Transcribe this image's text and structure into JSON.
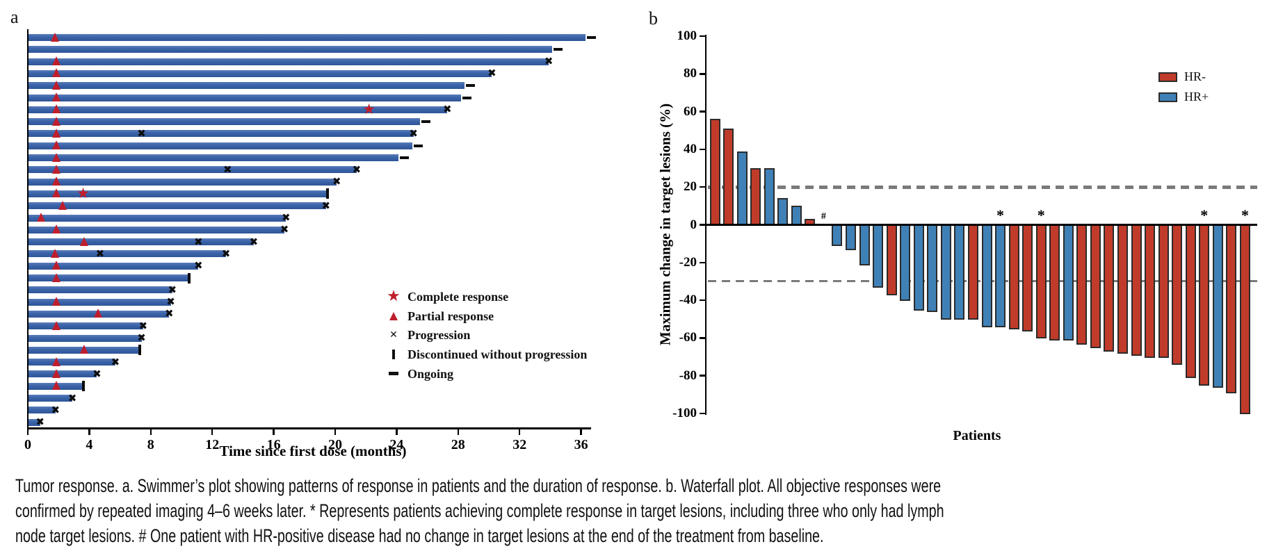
{
  "figure": {
    "caption": {
      "lines": [
        "Tumor response. a. Swimmer’s plot showing patterns of response in patients and the duration of response. b. Waterfall plot. All objective responses were",
        "confirmed by repeated imaging 4–6 weeks later. * Represents patients achieving complete response in target lesions, including three who only had lymph",
        "node target lesions. # One patient with HR-positive disease had no change in target lesions at the end of the treatment from baseline."
      ]
    }
  },
  "chart_data": [
    {
      "type": "bar",
      "subtype": "swimmer",
      "panel_label": "a",
      "xlabel": "Time since first dose (months)",
      "xlim": [
        0,
        36.5
      ],
      "x_ticks": [
        0,
        4,
        8,
        12,
        16,
        20,
        24,
        28,
        32,
        36
      ],
      "grid": false,
      "colors": {
        "bar_blue": "#3a63a8",
        "response_red": "#bf1e2c",
        "marker_black": "#0d0d0d"
      },
      "legend_position": "center-right",
      "legend": [
        {
          "symbol": "star",
          "label": "Complete response"
        },
        {
          "symbol": "triangle",
          "label": "Partial response"
        },
        {
          "symbol": "x",
          "label": "Progression"
        },
        {
          "symbol": "bar",
          "label": "Discontinued without progression"
        },
        {
          "symbol": "dash",
          "label": "Ongoing"
        }
      ],
      "patients": [
        {
          "months": 36.3,
          "end": "ongoing",
          "pr": [
            1.8
          ]
        },
        {
          "months": 34.1,
          "end": "ongoing"
        },
        {
          "months": 33.9,
          "end": "progression",
          "pr": [
            1.9
          ]
        },
        {
          "months": 30.2,
          "end": "progression",
          "pr": [
            1.9
          ]
        },
        {
          "months": 28.4,
          "end": "ongoing",
          "pr": [
            1.9
          ]
        },
        {
          "months": 28.2,
          "end": "ongoing",
          "pr": [
            1.9
          ]
        },
        {
          "months": 27.3,
          "end": "progression",
          "pr": [
            1.9
          ],
          "cr": [
            22.2
          ]
        },
        {
          "months": 25.5,
          "end": "ongoing",
          "pr": [
            1.9
          ]
        },
        {
          "months": 25.1,
          "end": "progression",
          "pr": [
            1.9
          ],
          "x": [
            7.4
          ]
        },
        {
          "months": 25.0,
          "end": "ongoing",
          "pr": [
            1.9
          ]
        },
        {
          "months": 24.1,
          "end": "ongoing",
          "pr": [
            1.9
          ]
        },
        {
          "months": 21.4,
          "end": "progression",
          "pr": [
            1.9
          ],
          "x": [
            13.0
          ]
        },
        {
          "months": 20.1,
          "end": "progression",
          "pr": [
            1.9
          ]
        },
        {
          "months": 19.5,
          "end": "discontinued",
          "pr": [
            1.9
          ],
          "cr": [
            3.6
          ]
        },
        {
          "months": 19.4,
          "end": "progression",
          "pr": [
            2.3
          ]
        },
        {
          "months": 16.8,
          "end": "progression",
          "pr": [
            0.9
          ]
        },
        {
          "months": 16.7,
          "end": "progression",
          "pr": [
            1.9
          ]
        },
        {
          "months": 14.7,
          "end": "progression",
          "pr": [
            3.7
          ],
          "x": [
            11.1
          ]
        },
        {
          "months": 12.9,
          "end": "progression",
          "pr": [
            1.8
          ],
          "x": [
            4.7
          ]
        },
        {
          "months": 11.1,
          "end": "progression",
          "pr": [
            1.9
          ]
        },
        {
          "months": 10.5,
          "end": "discontinued",
          "pr": [
            1.9
          ]
        },
        {
          "months": 9.4,
          "end": "progression"
        },
        {
          "months": 9.3,
          "end": "progression",
          "pr": [
            1.9
          ]
        },
        {
          "months": 9.2,
          "end": "progression",
          "pr": [
            4.6
          ]
        },
        {
          "months": 7.5,
          "end": "progression",
          "pr": [
            1.9
          ]
        },
        {
          "months": 7.4,
          "end": "progression"
        },
        {
          "months": 7.3,
          "end": "discontinued",
          "pr": [
            3.7
          ]
        },
        {
          "months": 5.7,
          "end": "progression",
          "pr": [
            1.9
          ]
        },
        {
          "months": 4.5,
          "end": "progression",
          "pr": [
            1.9
          ]
        },
        {
          "months": 3.6,
          "end": "discontinued",
          "pr": [
            1.9
          ]
        },
        {
          "months": 2.9,
          "end": "progression"
        },
        {
          "months": 1.8,
          "end": "progression"
        },
        {
          "months": 0.8,
          "end": "progression"
        }
      ]
    },
    {
      "type": "bar",
      "subtype": "waterfall",
      "panel_label": "b",
      "ylabel": "Maximum change in target lesions (%)",
      "xlabel": "Patients",
      "ylim": [
        -100,
        100
      ],
      "y_ticks": [
        100,
        80,
        60,
        40,
        20,
        0,
        -20,
        -40,
        -60,
        -80,
        -100
      ],
      "reference_lines": [
        20,
        -30
      ],
      "grid": false,
      "colors": {
        "hr_neg": "#c13b2a",
        "hr_pos": "#3f81b7",
        "bar_border": "#2b2b2b",
        "ref_gray": "#7a7a7a"
      },
      "legend_position": "top-right",
      "legend": [
        {
          "label": "HR-",
          "color": "#c13b2a"
        },
        {
          "label": "HR+",
          "color": "#3f81b7"
        }
      ],
      "bars": [
        {
          "value": 56,
          "group": "HR-"
        },
        {
          "value": 51,
          "group": "HR-"
        },
        {
          "value": 39,
          "group": "HR+"
        },
        {
          "value": 30,
          "group": "HR-"
        },
        {
          "value": 30,
          "group": "HR+"
        },
        {
          "value": 14,
          "group": "HR+"
        },
        {
          "value": 10,
          "group": "HR+"
        },
        {
          "value": 3,
          "group": "HR-"
        },
        {
          "value": 0,
          "group": "HR+",
          "annotation": "#"
        },
        {
          "value": -11,
          "group": "HR+"
        },
        {
          "value": -13,
          "group": "HR+"
        },
        {
          "value": -21,
          "group": "HR+"
        },
        {
          "value": -33,
          "group": "HR+"
        },
        {
          "value": -37,
          "group": "HR-"
        },
        {
          "value": -40,
          "group": "HR+"
        },
        {
          "value": -45,
          "group": "HR+"
        },
        {
          "value": -46,
          "group": "HR+"
        },
        {
          "value": -50,
          "group": "HR+"
        },
        {
          "value": -50,
          "group": "HR+"
        },
        {
          "value": -50,
          "group": "HR-"
        },
        {
          "value": -54,
          "group": "HR+"
        },
        {
          "value": -54,
          "group": "HR+",
          "annotation": "*"
        },
        {
          "value": -55,
          "group": "HR-"
        },
        {
          "value": -56,
          "group": "HR-"
        },
        {
          "value": -60,
          "group": "HR-",
          "annotation": "*"
        },
        {
          "value": -61,
          "group": "HR-"
        },
        {
          "value": -61,
          "group": "HR+"
        },
        {
          "value": -63,
          "group": "HR-"
        },
        {
          "value": -65,
          "group": "HR-"
        },
        {
          "value": -67,
          "group": "HR-"
        },
        {
          "value": -68,
          "group": "HR-"
        },
        {
          "value": -69,
          "group": "HR-"
        },
        {
          "value": -70,
          "group": "HR-"
        },
        {
          "value": -70,
          "group": "HR-"
        },
        {
          "value": -74,
          "group": "HR-"
        },
        {
          "value": -81,
          "group": "HR-"
        },
        {
          "value": -85,
          "group": "HR-",
          "annotation": "*"
        },
        {
          "value": -86,
          "group": "HR+"
        },
        {
          "value": -89,
          "group": "HR-"
        },
        {
          "value": -100,
          "group": "HR-",
          "annotation": "*"
        }
      ]
    }
  ]
}
